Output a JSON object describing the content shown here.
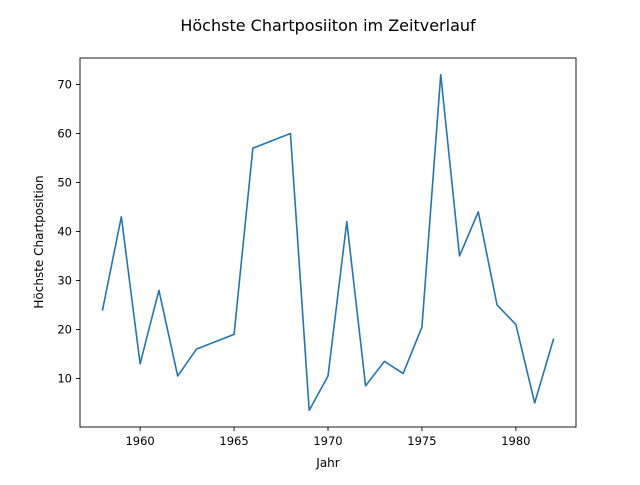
{
  "chart_data": {
    "type": "line",
    "title": "Höchste Chartposiiton im Zeitverlauf",
    "xlabel": "Jahr",
    "ylabel": "Höchste Chartposition",
    "xlim": [
      1956.8,
      1983.2
    ],
    "ylim": [
      0.1,
      75.4
    ],
    "xticks": [
      1960,
      1965,
      1970,
      1975,
      1980
    ],
    "yticks": [
      10,
      20,
      30,
      40,
      50,
      60,
      70
    ],
    "grid": false,
    "series": [
      {
        "color": "#1f77b4",
        "x": [
          1958,
          1959,
          1960,
          1961,
          1962,
          1963,
          1965,
          1966,
          1968,
          1969,
          1970,
          1971,
          1972,
          1973,
          1974,
          1975,
          1976,
          1977,
          1978,
          1979,
          1980,
          1981,
          1982
        ],
        "y": [
          24,
          43,
          13,
          28,
          10.5,
          16,
          19,
          57,
          60,
          3.5,
          10.5,
          42,
          8.5,
          13.5,
          11,
          20.5,
          72,
          35,
          44,
          25,
          21,
          5,
          18
        ]
      }
    ]
  }
}
